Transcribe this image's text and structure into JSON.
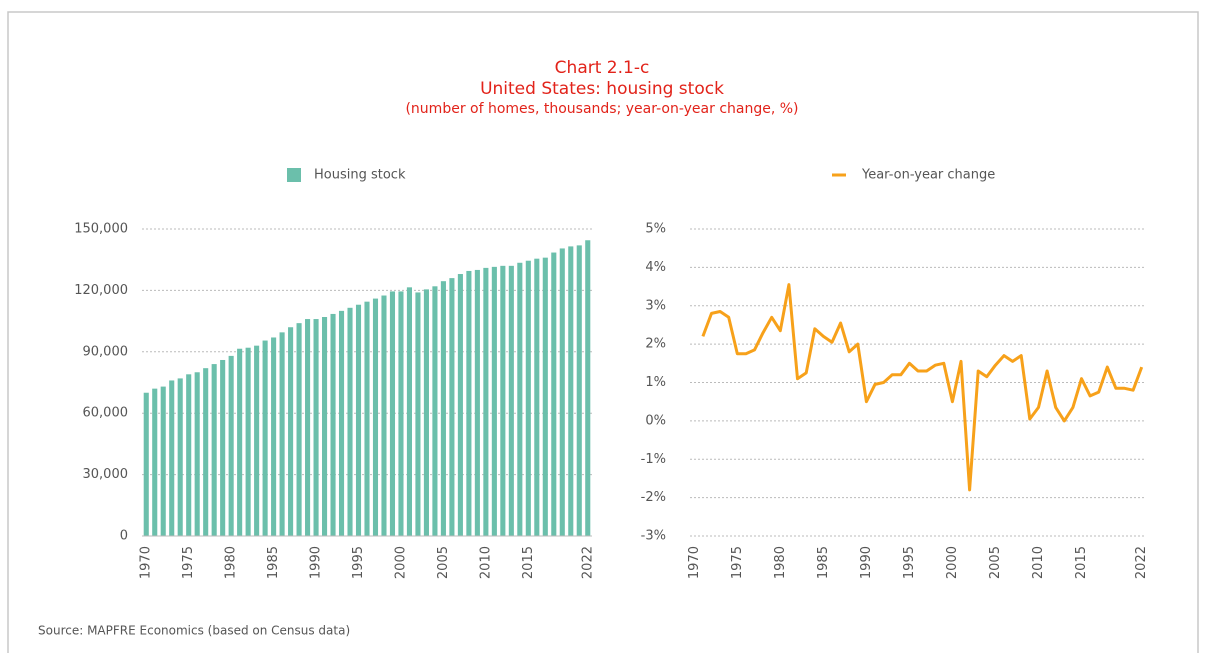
{
  "title": [
    "Chart 2.1-c",
    "United States: housing stock"
  ],
  "subtitle": "(number of homes, thousands; year-on-year change, %)",
  "source": "Source: MAPFRE Economics (based on Census data)",
  "chart_data": [
    {
      "type": "bar",
      "categories": [
        "1970",
        null,
        null,
        null,
        null,
        "1975",
        null,
        null,
        null,
        null,
        "1980",
        null,
        null,
        null,
        null,
        "1985",
        null,
        null,
        null,
        null,
        "1990",
        null,
        null,
        null,
        null,
        "1995",
        null,
        null,
        null,
        null,
        "2000",
        null,
        null,
        null,
        null,
        "2005",
        null,
        null,
        null,
        null,
        "2010",
        null,
        null,
        null,
        null,
        "2015",
        null,
        null,
        null,
        null,
        null,
        null,
        "2022"
      ],
      "series": [
        {
          "name": "Housing stock",
          "color": "#6bbfab",
          "values": [
            70000,
            72000,
            73000,
            76000,
            77000,
            79000,
            80000,
            82000,
            84000,
            86000,
            88000,
            91500,
            92000,
            93000,
            95500,
            97000,
            99500,
            102000,
            104000,
            106000,
            106000,
            107000,
            108500,
            110000,
            111500,
            113000,
            114500,
            116000,
            117500,
            119500,
            119500,
            121500,
            119000,
            120500,
            122000,
            124500,
            126000,
            128000,
            129500,
            130000,
            131000,
            131500,
            132000,
            132000,
            133500,
            134500,
            135500,
            136000,
            138500,
            140500,
            141500,
            142000,
            144500
          ]
        }
      ],
      "ylim": [
        0,
        150000
      ],
      "yticks": [
        0,
        {
          "value": 30000,
          "label": "30,000"
        },
        {
          "value": 60000,
          "label": "60,000"
        },
        {
          "value": 90000,
          "label": "90,000"
        },
        {
          "value": 120000,
          "label": "120,000"
        },
        {
          "value": 150000,
          "label": "150,000"
        }
      ],
      "grid": true
    },
    {
      "type": "line",
      "categories": [
        "1970",
        null,
        null,
        null,
        null,
        "1975",
        null,
        null,
        null,
        null,
        "1980",
        null,
        null,
        null,
        null,
        "1985",
        null,
        null,
        null,
        null,
        "1990",
        null,
        null,
        null,
        null,
        "1995",
        null,
        null,
        null,
        null,
        "2000",
        null,
        null,
        null,
        null,
        "2005",
        null,
        null,
        null,
        null,
        "2010",
        null,
        null,
        null,
        null,
        "2015",
        null,
        null,
        null,
        null,
        null,
        null,
        "2022"
      ],
      "series": [
        {
          "name": "Year-on-year change",
          "color": "#f7a11a",
          "values": [
            null,
            2.2,
            2.8,
            2.85,
            2.7,
            1.75,
            1.75,
            1.85,
            2.3,
            2.7,
            2.35,
            3.55,
            1.1,
            1.25,
            2.4,
            2.2,
            2.05,
            2.55,
            1.8,
            2.0,
            0.5,
            0.95,
            1.0,
            1.2,
            1.2,
            1.5,
            1.3,
            1.3,
            1.45,
            1.5,
            0.5,
            1.55,
            -1.8,
            1.3,
            1.15,
            1.45,
            1.7,
            1.55,
            1.7,
            0.05,
            0.35,
            1.3,
            0.35,
            0.0,
            0.35,
            1.1,
            0.65,
            0.75,
            1.4,
            0.85,
            0.85,
            0.8,
            1.4
          ]
        }
      ],
      "ylim": [
        -3,
        5
      ],
      "yticks": [
        {
          "value": -3,
          "label": "-3%"
        },
        {
          "value": -2,
          "label": "-2%"
        },
        {
          "value": -1,
          "label": "-1%"
        },
        {
          "value": 0,
          "label": "0%"
        },
        {
          "value": 1,
          "label": "1%"
        },
        {
          "value": 2,
          "label": "2%"
        },
        {
          "value": 3,
          "label": "3%"
        },
        {
          "value": 4,
          "label": "4%"
        },
        {
          "value": 5,
          "label": "5%"
        }
      ],
      "grid": true
    }
  ]
}
